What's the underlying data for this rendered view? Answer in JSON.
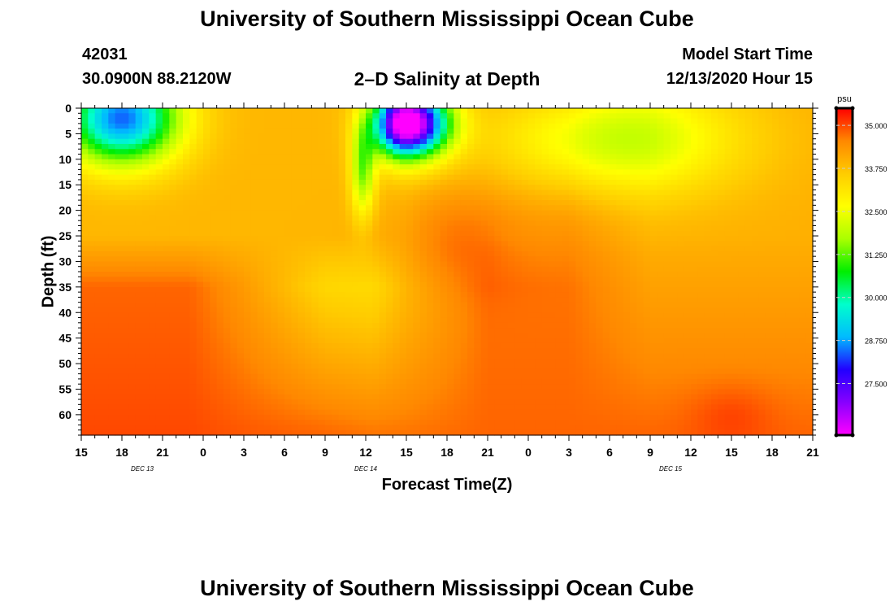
{
  "header": {
    "title": "University of Southern Mississippi Ocean Cube",
    "station_id": "42031",
    "station_coords": "30.0900N 88.2120W",
    "chart_title": "2–D Salinity at Depth",
    "model_label": "Model Start Time",
    "model_date": "12/13/2020 Hour 15"
  },
  "footer": {
    "title": "University of Southern Mississippi Ocean Cube"
  },
  "chart_data": {
    "type": "heatmap",
    "title": "2–D Salinity at Depth",
    "xlabel": "Forecast Time(Z)",
    "ylabel": "Depth (ft)",
    "x_hours_range": [
      0,
      54
    ],
    "x_tick_hours": [
      0,
      3,
      6,
      9,
      12,
      15,
      18,
      21,
      24,
      27,
      30,
      33,
      36,
      39,
      42,
      45,
      48,
      51,
      54
    ],
    "x_tick_labels": [
      "15",
      "18",
      "21",
      "0",
      "3",
      "6",
      "9",
      "12",
      "15",
      "18",
      "21",
      "0",
      "3",
      "6",
      "9",
      "12",
      "15",
      "18",
      "21"
    ],
    "date_labels": [
      {
        "hour": 4.5,
        "text": "DEC 13"
      },
      {
        "hour": 21,
        "text": "DEC 14"
      },
      {
        "hour": 43.5,
        "text": "DEC 15"
      }
    ],
    "ylim": [
      0,
      64
    ],
    "y_tick_values": [
      0,
      5,
      10,
      15,
      20,
      25,
      30,
      35,
      40,
      45,
      50,
      55,
      60
    ],
    "y_tick_labels": [
      "0",
      "5",
      "10",
      "15",
      "20",
      "25",
      "30",
      "35",
      "40",
      "45",
      "50",
      "55",
      "60"
    ],
    "colorbar": {
      "unit": "psu",
      "min": 26.0,
      "max": 35.5,
      "tick_values": [
        35.0,
        33.75,
        32.5,
        31.25,
        30.0,
        28.75,
        27.5
      ],
      "tick_labels": [
        "35.000",
        "33.750",
        "32.500",
        "31.250",
        "30.000",
        "28.750",
        "27.500"
      ],
      "colors": [
        "#ff00ff",
        "#8800ff",
        "#2200ff",
        "#00bbff",
        "#00ffcc",
        "#00ee00",
        "#aaff00",
        "#ffff00",
        "#ffcc00",
        "#ff8800",
        "#ff0000"
      ]
    },
    "series": [
      {
        "name": "background",
        "hours": [
          0,
          8,
          12,
          18,
          21.5,
          24,
          30,
          36,
          42,
          48,
          54
        ],
        "d25": [
          33.9,
          33.9,
          33.9,
          33.9,
          33.9,
          33.8,
          34.3,
          34.5,
          34.0,
          34.0,
          34.0
        ],
        "d60": [
          34.8,
          34.8,
          34.8,
          34.8,
          34.6,
          34.5,
          34.7,
          34.8,
          34.8,
          34.7,
          34.7
        ],
        "d30": [
          34.8,
          34.8,
          34.3,
          33.4,
          33.3,
          33.8,
          34.7,
          34.7,
          34.2,
          34.2,
          34.2
        ],
        "d64": [
          35.0,
          35.0,
          34.9,
          34.8,
          34.7,
          34.7,
          34.8,
          34.8,
          34.8,
          34.8,
          34.8
        ]
      },
      {
        "name": "fresh_anomalies_psu_drop",
        "features": [
          {
            "label": "surface fresh lens Dec 13",
            "hour": 3,
            "depth_ft": 2,
            "drop": 5.5
          },
          {
            "label": "surface fresh lens Dec 14",
            "hour": 24,
            "depth_ft": 3,
            "drop": 8.7
          },
          {
            "label": "brackish plume Dec 15",
            "hour": 39,
            "depth_ft": 6,
            "drop": 2.2
          },
          {
            "label": "narrow intrusion",
            "hour": 20.8,
            "depth_ft": 12,
            "drop": 2.5
          }
        ]
      }
    ]
  }
}
